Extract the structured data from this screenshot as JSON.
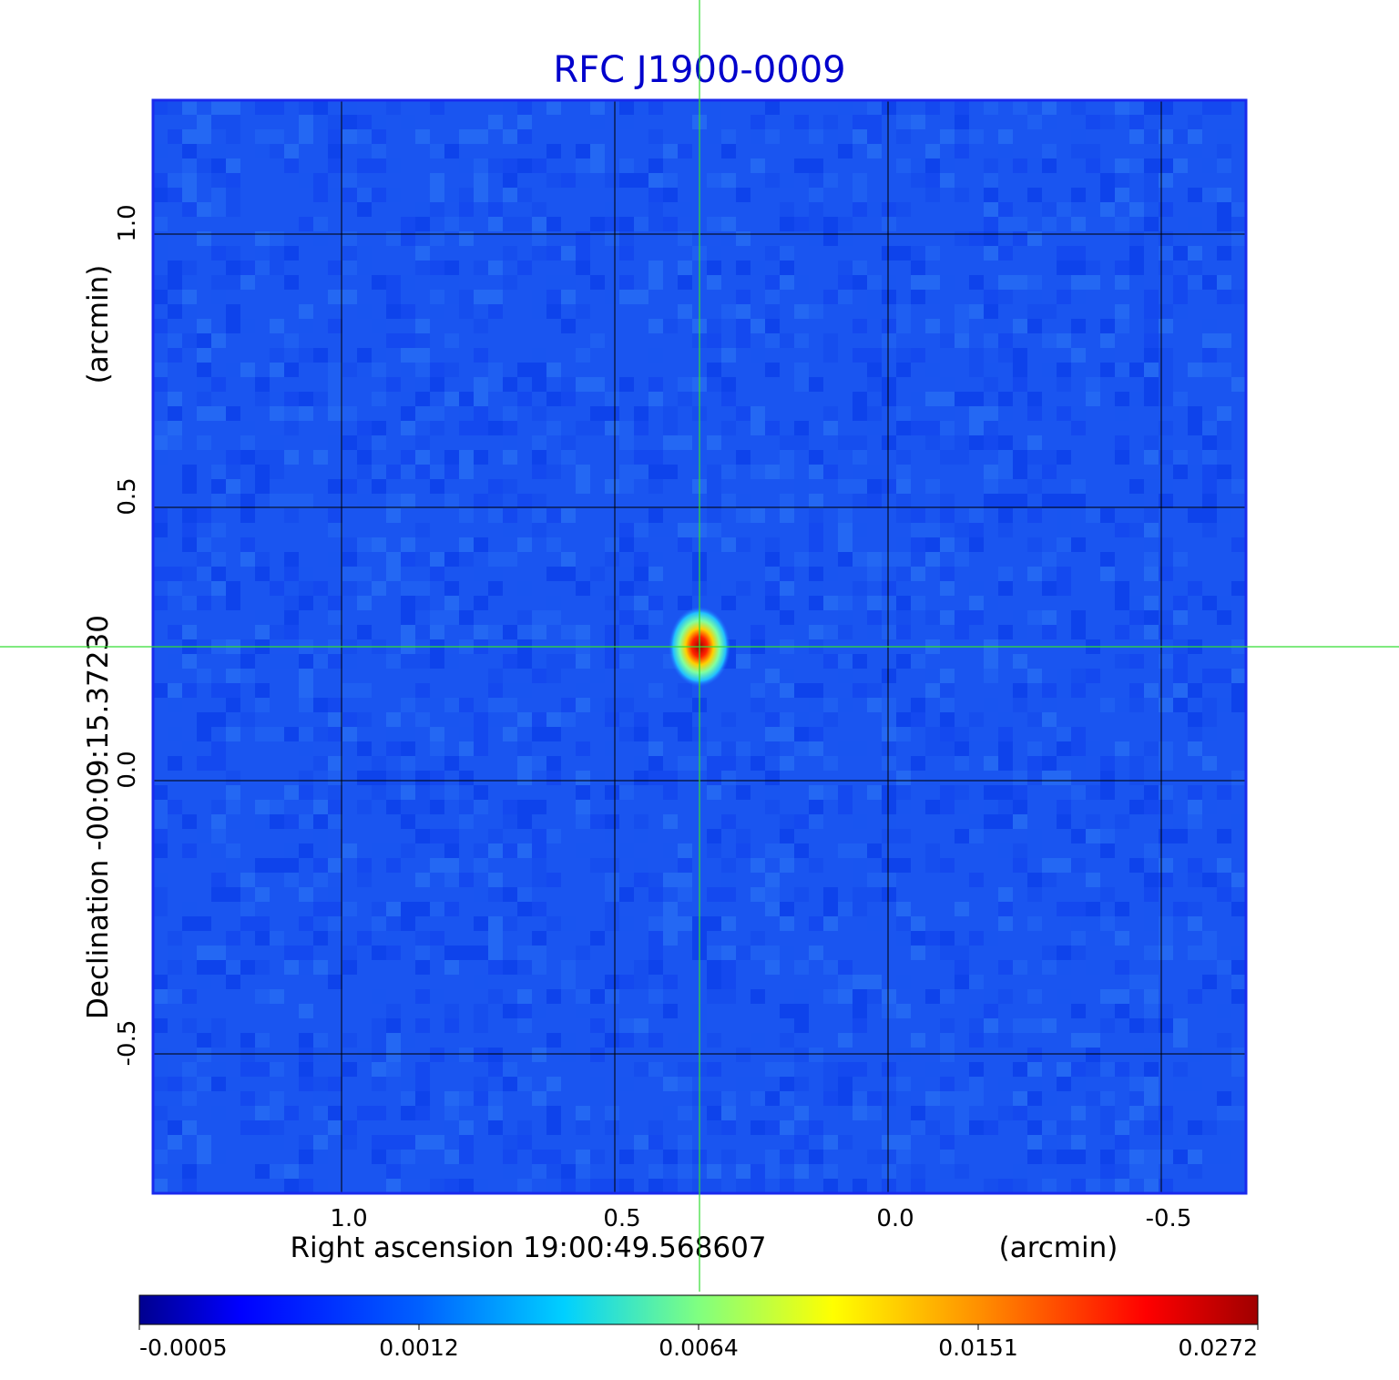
{
  "chart_data": {
    "type": "heatmap",
    "title": "RFC J1900-0009",
    "xlabel": "Right ascension  19:00:49.568607",
    "xunit": "(arcmin)",
    "ylabel": "Declination  -00:09:15.37230",
    "yunit": "(arcmin)",
    "x_range": [
      1.345,
      -0.655
    ],
    "y_range": [
      -0.755,
      1.245
    ],
    "x_ticks": [
      1.0,
      0.5,
      0.0,
      -0.5
    ],
    "x_tick_labels": [
      "1.0",
      "0.5",
      "0.0",
      "-0.5"
    ],
    "y_ticks": [
      1.0,
      0.5,
      0.0,
      -0.5
    ],
    "y_tick_labels": [
      "1.0",
      "0.5",
      "0.0",
      "-0.5"
    ],
    "grid": true,
    "crosshair": {
      "x": 0.345,
      "y": 0.245
    },
    "source": {
      "x": 0.345,
      "y": 0.245,
      "peak": 0.0272
    },
    "colorbar": {
      "ticks": [
        -0.0005,
        0.0012,
        0.0064,
        0.0151,
        0.0272
      ],
      "tick_labels": [
        "-0.0005",
        "0.0012",
        "0.0064",
        "0.0151",
        "0.0272"
      ],
      "colormap": "jet"
    },
    "colors": {
      "title": "#0000cc",
      "crosshair": "#33dd33",
      "frame": "#1a2aee",
      "grid": "#000000"
    }
  }
}
